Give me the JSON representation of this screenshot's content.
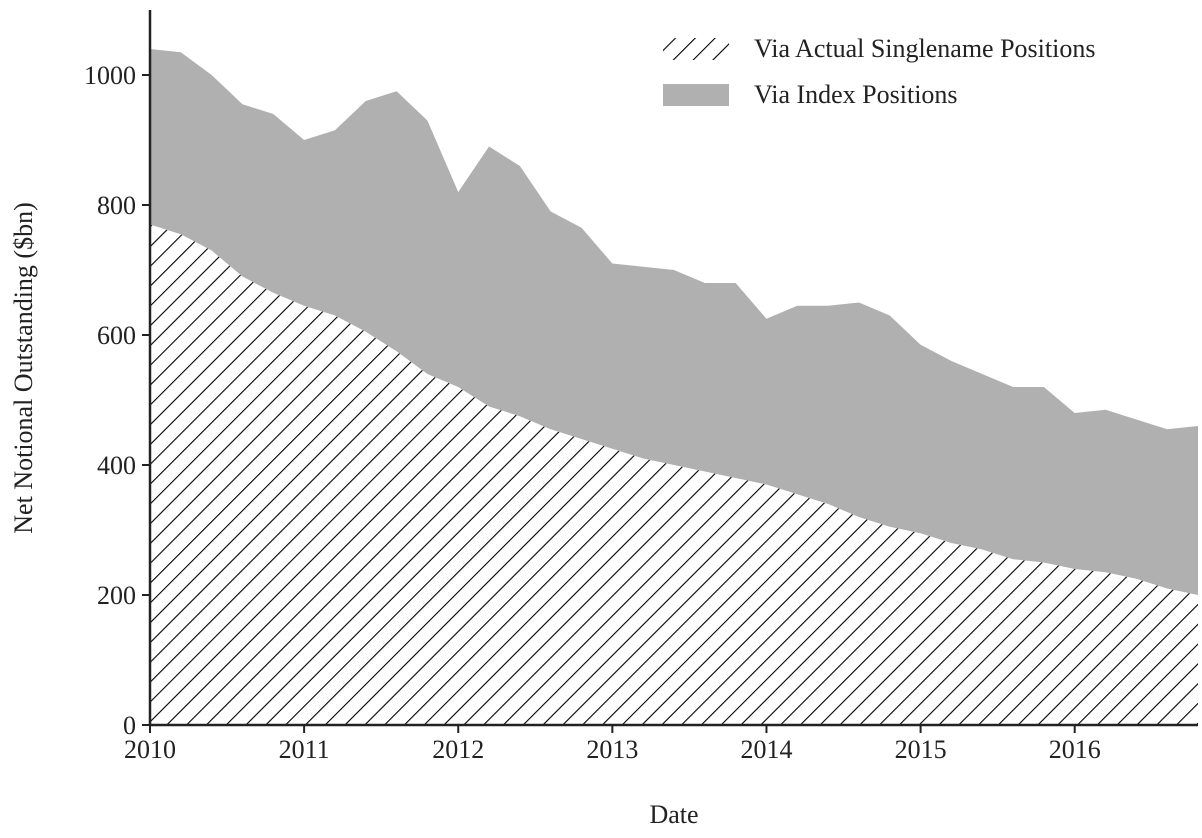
{
  "chart_data": {
    "type": "stacked_area",
    "x_label": "Date",
    "y_label": "Net Notional Outstanding ($bn)",
    "x": [
      2010.0,
      2010.2,
      2010.4,
      2010.6,
      2010.8,
      2011.0,
      2011.2,
      2011.4,
      2011.6,
      2011.8,
      2012.0,
      2012.2,
      2012.4,
      2012.6,
      2012.8,
      2013.0,
      2013.2,
      2013.4,
      2013.6,
      2013.8,
      2014.0,
      2014.2,
      2014.4,
      2014.6,
      2014.8,
      2015.0,
      2015.2,
      2015.4,
      2015.6,
      2015.8,
      2016.0,
      2016.2,
      2016.4,
      2016.6,
      2016.8
    ],
    "series": [
      {
        "name": "Via Actual Singlename Positions",
        "color": "#000000",
        "hatch": true,
        "values": [
          770,
          755,
          730,
          690,
          665,
          645,
          630,
          605,
          575,
          540,
          520,
          490,
          475,
          455,
          440,
          425,
          410,
          400,
          390,
          380,
          370,
          355,
          340,
          320,
          305,
          295,
          280,
          270,
          255,
          250,
          240,
          235,
          225,
          210,
          200
        ]
      },
      {
        "name": "Via Index Positions",
        "color": "#b0b0b0",
        "values": [
          270,
          280,
          270,
          265,
          275,
          255,
          285,
          355,
          400,
          390,
          300,
          400,
          385,
          335,
          325,
          285,
          295,
          300,
          290,
          300,
          255,
          290,
          305,
          330,
          325,
          290,
          280,
          270,
          265,
          270,
          240,
          250,
          245,
          245,
          260
        ]
      }
    ],
    "xlim": [
      2010,
      2016.8
    ],
    "xticks": [
      2010,
      2011,
      2012,
      2013,
      2014,
      2015,
      2016
    ],
    "ylim": [
      0,
      1100
    ],
    "yticks": [
      0,
      200,
      400,
      600,
      800,
      1000
    ],
    "legend": "upper right"
  }
}
